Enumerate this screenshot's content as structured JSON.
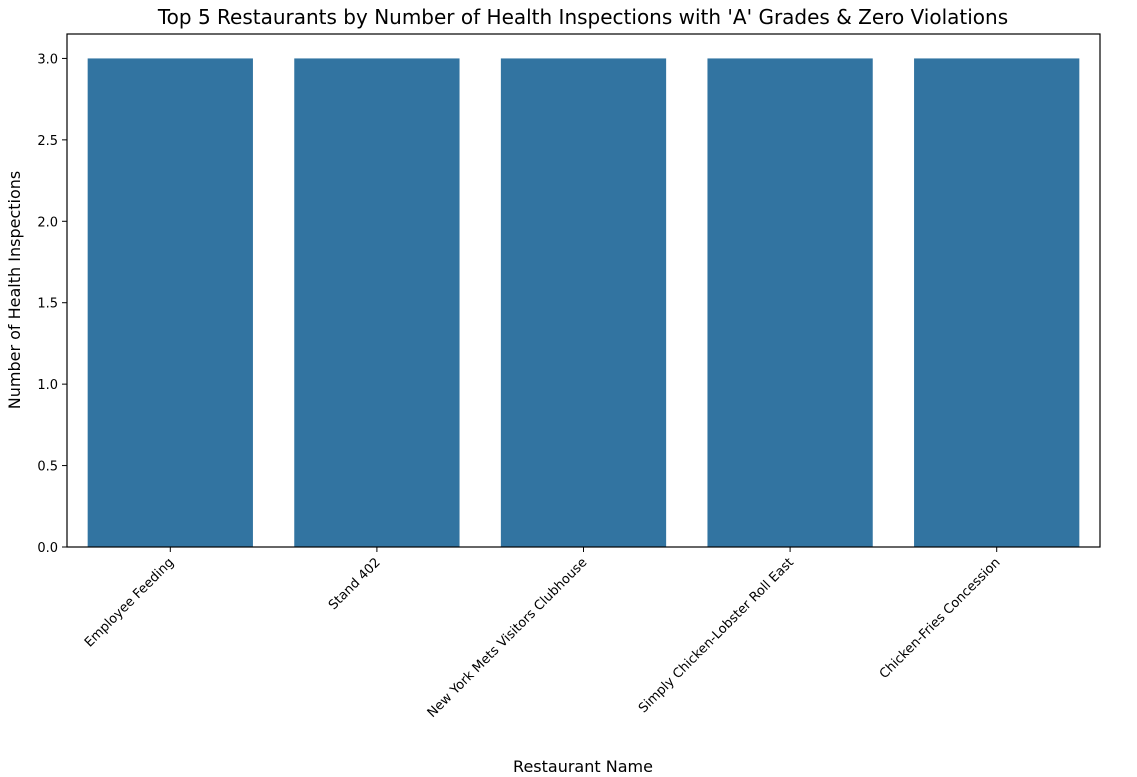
{
  "chart_data": {
    "type": "bar",
    "title": "Top 5 Restaurants by Number of Health Inspections with 'A' Grades & Zero Violations",
    "xlabel": "Restaurant Name",
    "ylabel": "Number of Health Inspections",
    "categories": [
      "Employee Feeding",
      "Stand 402",
      "New York Mets Visitors Clubhouse",
      "Simply Chicken-Lobster Roll East",
      "Chicken-Fries Concession"
    ],
    "values": [
      3,
      3,
      3,
      3,
      3
    ],
    "ylim": [
      0,
      3.15
    ],
    "yticks": [
      "0.0",
      "0.5",
      "1.0",
      "1.5",
      "2.0",
      "2.5",
      "3.0"
    ],
    "bar_color": "#3274a1",
    "grid": false,
    "legend": "none"
  }
}
